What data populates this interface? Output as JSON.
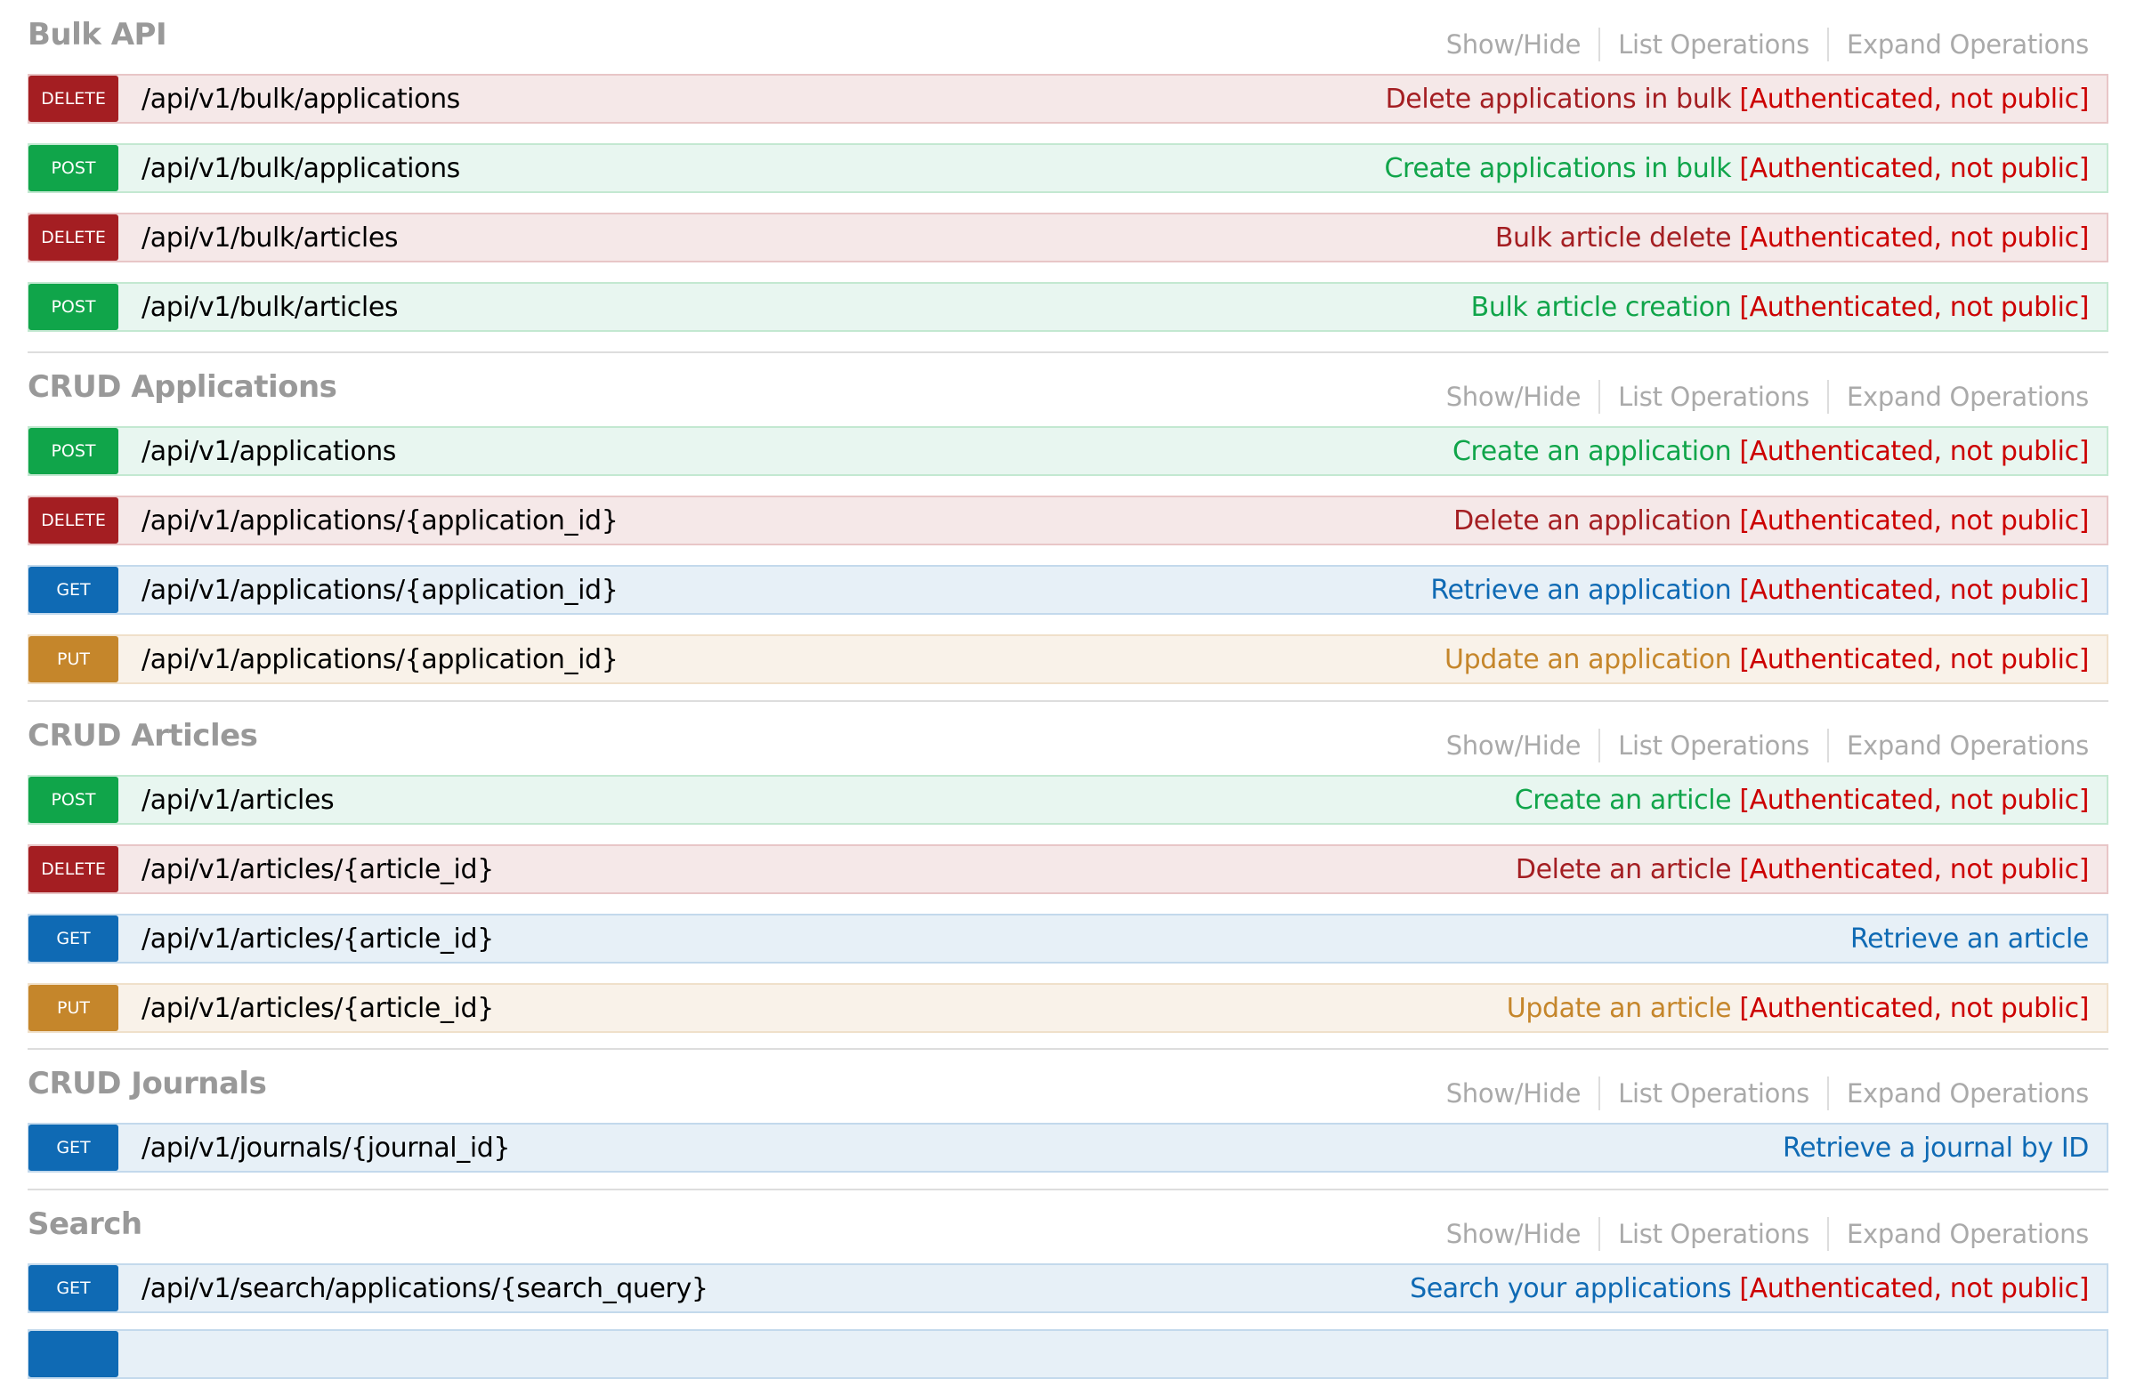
{
  "ops_labels": {
    "show_hide": "Show/Hide",
    "list": "List Operations",
    "expand": "Expand Operations"
  },
  "auth_note": "[Authenticated, not public]",
  "method_colors": {
    "DELETE": "#a41e22",
    "POST": "#10a54a",
    "GET": "#0f6ab4",
    "PUT": "#c5862b"
  },
  "sections": [
    {
      "title": "Bulk API",
      "rows": [
        {
          "method": "DELETE",
          "path": "/api/v1/bulk/applications",
          "summary": "Delete applications in bulk",
          "auth": true
        },
        {
          "method": "POST",
          "path": "/api/v1/bulk/applications",
          "summary": "Create applications in bulk",
          "auth": true
        },
        {
          "method": "DELETE",
          "path": "/api/v1/bulk/articles",
          "summary": "Bulk article delete",
          "auth": true
        },
        {
          "method": "POST",
          "path": "/api/v1/bulk/articles",
          "summary": "Bulk article creation",
          "auth": true
        }
      ]
    },
    {
      "title": "CRUD Applications",
      "rows": [
        {
          "method": "POST",
          "path": "/api/v1/applications",
          "summary": "Create an application",
          "auth": true
        },
        {
          "method": "DELETE",
          "path": "/api/v1/applications/{application_id}",
          "summary": "Delete an application",
          "auth": true
        },
        {
          "method": "GET",
          "path": "/api/v1/applications/{application_id}",
          "summary": "Retrieve an application",
          "auth": true
        },
        {
          "method": "PUT",
          "path": "/api/v1/applications/{application_id}",
          "summary": "Update an application",
          "auth": true
        }
      ]
    },
    {
      "title": "CRUD Articles",
      "rows": [
        {
          "method": "POST",
          "path": "/api/v1/articles",
          "summary": "Create an article",
          "auth": true
        },
        {
          "method": "DELETE",
          "path": "/api/v1/articles/{article_id}",
          "summary": "Delete an article",
          "auth": true
        },
        {
          "method": "GET",
          "path": "/api/v1/articles/{article_id}",
          "summary": "Retrieve an article",
          "auth": false
        },
        {
          "method": "PUT",
          "path": "/api/v1/articles/{article_id}",
          "summary": "Update an article",
          "auth": true
        }
      ]
    },
    {
      "title": "CRUD Journals",
      "rows": [
        {
          "method": "GET",
          "path": "/api/v1/journals/{journal_id}",
          "summary": "Retrieve a journal by ID",
          "auth": false
        }
      ]
    },
    {
      "title": "Search",
      "rows": [
        {
          "method": "GET",
          "path": "/api/v1/search/applications/{search_query}",
          "summary": "Search your applications",
          "auth": true
        }
      ]
    }
  ]
}
